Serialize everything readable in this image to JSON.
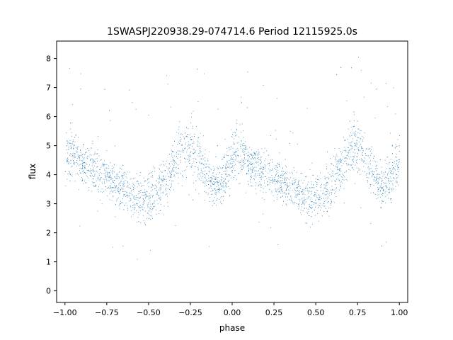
{
  "chart_data": {
    "type": "scatter",
    "title": "1SWASPJ220938.29-074714.6 Period 12115925.0s",
    "xlabel": "phase",
    "ylabel": "flux",
    "xlim": [
      -1.05,
      1.05
    ],
    "ylim": [
      -0.4,
      8.6
    ],
    "xticks": [
      -1.0,
      -0.75,
      -0.5,
      -0.25,
      0.0,
      0.25,
      0.5,
      0.75,
      1.0
    ],
    "xtick_labels": [
      "−1.00",
      "−0.75",
      "−0.50",
      "−0.25",
      "0.00",
      "0.25",
      "0.50",
      "0.75",
      "1.00"
    ],
    "yticks": [
      0,
      1,
      2,
      3,
      4,
      5,
      6,
      7,
      8
    ],
    "ytick_labels": [
      "0",
      "1",
      "2",
      "3",
      "4",
      "5",
      "6",
      "7",
      "8"
    ],
    "grid": false,
    "legend": "none",
    "point_color": "#1f77b4",
    "profile": {
      "x": [
        -1.0,
        -0.95,
        -0.9,
        -0.85,
        -0.8,
        -0.75,
        -0.7,
        -0.65,
        -0.6,
        -0.55,
        -0.5,
        -0.45,
        -0.4,
        -0.35,
        -0.3,
        -0.25,
        -0.2,
        -0.15,
        -0.1,
        -0.05,
        0.0,
        0.05,
        0.1,
        0.15,
        0.2,
        0.25,
        0.3,
        0.35,
        0.4,
        0.45,
        0.5,
        0.55,
        0.6,
        0.65,
        0.7,
        0.75,
        0.8,
        0.85,
        0.9,
        0.95,
        1.0
      ],
      "median_flux": [
        4.6,
        4.7,
        4.4,
        4.2,
        4.1,
        3.9,
        3.7,
        3.6,
        3.3,
        3.2,
        3.2,
        3.5,
        3.8,
        4.3,
        4.9,
        5.0,
        4.6,
        4.0,
        3.6,
        3.9,
        4.6,
        4.7,
        4.4,
        4.2,
        4.1,
        3.9,
        3.7,
        3.6,
        3.3,
        3.2,
        3.2,
        3.5,
        3.8,
        4.3,
        4.9,
        5.0,
        4.6,
        4.0,
        3.6,
        3.9,
        4.6
      ],
      "spread": [
        0.8,
        0.7,
        0.6,
        0.6,
        0.6,
        0.6,
        0.6,
        0.6,
        0.6,
        0.7,
        0.7,
        0.7,
        0.7,
        0.7,
        0.8,
        0.8,
        0.8,
        0.7,
        0.6,
        0.7,
        0.8,
        0.7,
        0.6,
        0.6,
        0.6,
        0.6,
        0.6,
        0.6,
        0.6,
        0.7,
        0.7,
        0.7,
        0.7,
        0.7,
        0.8,
        0.8,
        0.8,
        0.7,
        0.6,
        0.7,
        0.8
      ]
    }
  }
}
